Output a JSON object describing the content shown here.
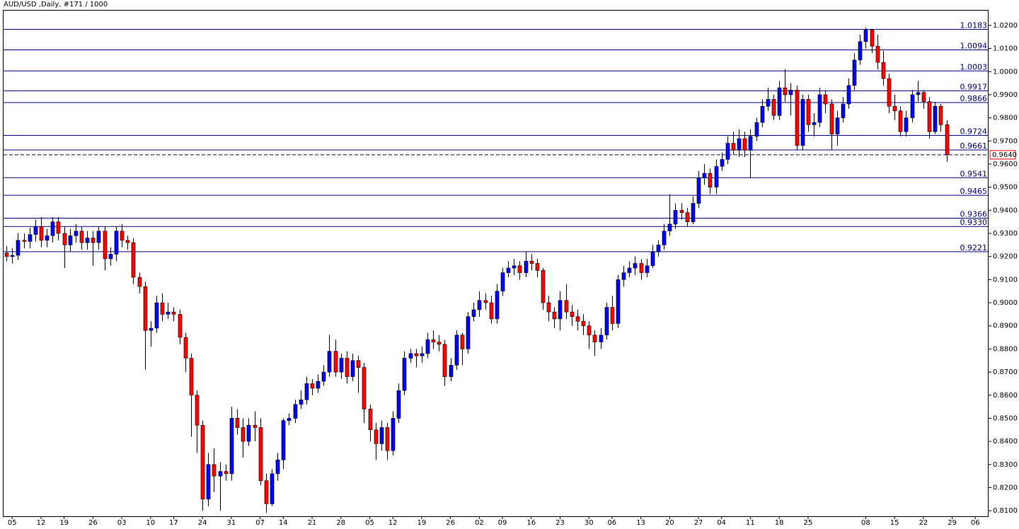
{
  "chart_data": {
    "type": "candlestick",
    "title": "AUD/USD ,Daily, #171 / 1000",
    "up_color": "#0000ff",
    "down_color": "#ff0000",
    "level_color": "#000080",
    "open": [
      0.9215,
      0.92,
      0.9205,
      0.927,
      0.9265,
      0.9295,
      0.933,
      0.927,
      0.929,
      0.935,
      0.93,
      0.925,
      0.929,
      0.931,
      0.926,
      0.928,
      0.926,
      0.931,
      0.919,
      0.921,
      0.931,
      0.927,
      0.926,
      0.911,
      0.907,
      0.888,
      0.889,
      0.9,
      0.895,
      0.896,
      0.895,
      0.885,
      0.876,
      0.86,
      0.847,
      0.815,
      0.83,
      0.825,
      0.827,
      0.826,
      0.85,
      0.846,
      0.84,
      0.847,
      0.846,
      0.823,
      0.813,
      0.826,
      0.832,
      0.849,
      0.85,
      0.856,
      0.858,
      0.865,
      0.863,
      0.866,
      0.87,
      0.879,
      0.87,
      0.876,
      0.868,
      0.875,
      0.872,
      0.854,
      0.845,
      0.839,
      0.846,
      0.836,
      0.85,
      0.862,
      0.876,
      0.878,
      0.877,
      0.878,
      0.884,
      0.883,
      0.882,
      0.868,
      0.873,
      0.886,
      0.88,
      0.894,
      0.897,
      0.901,
      0.9,
      0.893,
      0.905,
      0.913,
      0.915,
      0.916,
      0.913,
      0.918,
      0.917,
      0.914,
      0.9,
      0.896,
      0.893,
      0.901,
      0.896,
      0.894,
      0.892,
      0.89,
      0.886,
      0.883,
      0.886,
      0.898,
      0.891,
      0.91,
      0.913,
      0.915,
      0.917,
      0.913,
      0.916,
      0.922,
      0.925,
      0.931,
      0.934,
      0.94,
      0.939,
      0.935,
      0.943,
      0.954,
      0.956,
      0.95,
      0.959,
      0.962,
      0.969,
      0.966,
      0.971,
      0.966,
      0.972,
      0.978,
      0.985,
      0.988,
      0.981,
      0.993,
      0.99,
      0.992,
      0.968,
      0.988,
      0.977,
      0.978,
      0.99,
      0.986,
      0.973,
      0.98,
      0.986,
      0.994,
      1.005,
      1.013,
      1.018,
      1.011,
      1.004,
      0.997,
      0.985,
      0.983,
      0.974,
      0.98,
      0.99,
      0.991,
      0.987,
      0.974,
      0.985,
      0.977
    ],
    "high": [
      0.9245,
      0.9235,
      0.93,
      0.93,
      0.9325,
      0.936,
      0.937,
      0.932,
      0.937,
      0.937,
      0.933,
      0.932,
      0.934,
      0.933,
      0.931,
      0.931,
      0.933,
      0.933,
      0.924,
      0.933,
      0.934,
      0.929,
      0.928,
      0.913,
      0.909,
      0.892,
      0.903,
      0.904,
      0.9,
      0.898,
      0.897,
      0.887,
      0.878,
      0.862,
      0.849,
      0.835,
      0.837,
      0.831,
      0.83,
      0.855,
      0.854,
      0.85,
      0.85,
      0.853,
      0.85,
      0.826,
      0.828,
      0.835,
      0.85,
      0.852,
      0.858,
      0.862,
      0.868,
      0.867,
      0.869,
      0.873,
      0.886,
      0.884,
      0.878,
      0.879,
      0.878,
      0.877,
      0.874,
      0.856,
      0.848,
      0.849,
      0.848,
      0.853,
      0.865,
      0.879,
      0.88,
      0.88,
      0.881,
      0.887,
      0.888,
      0.886,
      0.884,
      0.876,
      0.888,
      0.887,
      0.896,
      0.9,
      0.905,
      0.904,
      0.903,
      0.908,
      0.915,
      0.918,
      0.919,
      0.918,
      0.922,
      0.921,
      0.919,
      0.915,
      0.903,
      0.898,
      0.905,
      0.908,
      0.899,
      0.897,
      0.895,
      0.892,
      0.888,
      0.889,
      0.9,
      0.903,
      0.912,
      0.916,
      0.918,
      0.92,
      0.919,
      0.919,
      0.925,
      0.927,
      0.934,
      0.947,
      0.943,
      0.943,
      0.941,
      0.946,
      0.957,
      0.96,
      0.958,
      0.962,
      0.965,
      0.972,
      0.974,
      0.975,
      0.974,
      0.975,
      0.98,
      0.988,
      0.993,
      0.99,
      0.996,
      1.001,
      0.995,
      0.994,
      0.99,
      0.99,
      0.982,
      0.993,
      0.992,
      0.988,
      0.983,
      0.989,
      0.997,
      1.008,
      1.016,
      1.019,
      1.0185,
      1.016,
      1.009,
      0.999,
      0.99,
      0.985,
      0.983,
      0.992,
      0.996,
      0.992,
      0.989,
      0.987,
      0.986,
      0.979
    ],
    "low": [
      0.918,
      0.917,
      0.9185,
      0.9235,
      0.9235,
      0.9265,
      0.924,
      0.924,
      0.926,
      0.927,
      0.915,
      0.922,
      0.926,
      0.923,
      0.923,
      0.916,
      0.923,
      0.914,
      0.916,
      0.918,
      0.924,
      0.923,
      0.908,
      0.904,
      0.871,
      0.881,
      0.887,
      0.892,
      0.893,
      0.892,
      0.882,
      0.87,
      0.842,
      0.835,
      0.81,
      0.812,
      0.818,
      0.81,
      0.823,
      0.823,
      0.843,
      0.833,
      0.838,
      0.84,
      0.821,
      0.809,
      0.812,
      0.823,
      0.828,
      0.847,
      0.848,
      0.854,
      0.856,
      0.86,
      0.861,
      0.864,
      0.868,
      0.868,
      0.867,
      0.865,
      0.866,
      0.861,
      0.848,
      0.84,
      0.832,
      0.836,
      0.832,
      0.834,
      0.848,
      0.86,
      0.874,
      0.872,
      0.874,
      0.876,
      0.88,
      0.879,
      0.864,
      0.866,
      0.871,
      0.873,
      0.878,
      0.892,
      0.894,
      0.897,
      0.891,
      0.891,
      0.903,
      0.911,
      0.912,
      0.91,
      0.911,
      0.914,
      0.911,
      0.897,
      0.892,
      0.889,
      0.888,
      0.893,
      0.89,
      0.888,
      0.886,
      0.88,
      0.877,
      0.88,
      0.884,
      0.888,
      0.889,
      0.907,
      0.911,
      0.912,
      0.91,
      0.911,
      0.915,
      0.92,
      0.923,
      0.929,
      0.932,
      0.936,
      0.933,
      0.934,
      0.941,
      0.951,
      0.947,
      0.947,
      0.957,
      0.96,
      0.964,
      0.963,
      0.963,
      0.954,
      0.97,
      0.976,
      0.983,
      0.979,
      0.979,
      0.987,
      0.981,
      0.966,
      0.966,
      0.974,
      0.972,
      0.976,
      0.982,
      0.966,
      0.968,
      0.978,
      0.984,
      0.992,
      1.003,
      1.01,
      1.008,
      1.001,
      0.994,
      0.982,
      0.979,
      0.972,
      0.972,
      0.978,
      0.987,
      0.984,
      0.971,
      0.973,
      0.974,
      0.961
    ],
    "close": [
      0.92,
      0.9205,
      0.927,
      0.9265,
      0.9295,
      0.933,
      0.927,
      0.929,
      0.935,
      0.93,
      0.925,
      0.929,
      0.931,
      0.926,
      0.928,
      0.926,
      0.931,
      0.919,
      0.921,
      0.931,
      0.927,
      0.926,
      0.911,
      0.907,
      0.888,
      0.889,
      0.9,
      0.895,
      0.896,
      0.895,
      0.885,
      0.876,
      0.86,
      0.847,
      0.815,
      0.83,
      0.825,
      0.827,
      0.826,
      0.85,
      0.846,
      0.84,
      0.847,
      0.846,
      0.823,
      0.813,
      0.826,
      0.832,
      0.849,
      0.85,
      0.856,
      0.858,
      0.865,
      0.863,
      0.866,
      0.87,
      0.879,
      0.87,
      0.876,
      0.868,
      0.875,
      0.872,
      0.854,
      0.845,
      0.839,
      0.846,
      0.836,
      0.85,
      0.862,
      0.876,
      0.878,
      0.877,
      0.878,
      0.884,
      0.883,
      0.882,
      0.868,
      0.873,
      0.886,
      0.88,
      0.894,
      0.897,
      0.901,
      0.9,
      0.893,
      0.905,
      0.913,
      0.915,
      0.916,
      0.913,
      0.918,
      0.917,
      0.914,
      0.9,
      0.896,
      0.893,
      0.901,
      0.896,
      0.894,
      0.892,
      0.89,
      0.886,
      0.883,
      0.886,
      0.898,
      0.891,
      0.91,
      0.913,
      0.915,
      0.917,
      0.913,
      0.916,
      0.922,
      0.925,
      0.931,
      0.934,
      0.94,
      0.939,
      0.935,
      0.943,
      0.954,
      0.956,
      0.95,
      0.959,
      0.962,
      0.969,
      0.966,
      0.971,
      0.966,
      0.972,
      0.978,
      0.985,
      0.988,
      0.981,
      0.993,
      0.99,
      0.992,
      0.968,
      0.988,
      0.977,
      0.978,
      0.99,
      0.986,
      0.973,
      0.98,
      0.986,
      0.994,
      1.005,
      1.013,
      1.018,
      1.011,
      1.004,
      0.997,
      0.985,
      0.983,
      0.974,
      0.98,
      0.99,
      0.991,
      0.987,
      0.974,
      0.985,
      0.977,
      0.964
    ],
    "xlim": [
      -0.5,
      170.3
    ],
    "xticks": [
      {
        "value": 1,
        "label": "05"
      },
      {
        "value": 6,
        "label": "12"
      },
      {
        "value": 10,
        "label": "19"
      },
      {
        "value": 15,
        "label": "26"
      },
      {
        "value": 20,
        "label": "03"
      },
      {
        "value": 25,
        "label": "10"
      },
      {
        "value": 29,
        "label": "17"
      },
      {
        "value": 34,
        "label": "24"
      },
      {
        "value": 39,
        "label": "31"
      },
      {
        "value": 44,
        "label": "07"
      },
      {
        "value": 48,
        "label": "14"
      },
      {
        "value": 53,
        "label": "21"
      },
      {
        "value": 58,
        "label": "28"
      },
      {
        "value": 63,
        "label": "05"
      },
      {
        "value": 67,
        "label": "12"
      },
      {
        "value": 72,
        "label": "19"
      },
      {
        "value": 77,
        "label": "26"
      },
      {
        "value": 82,
        "label": "02"
      },
      {
        "value": 86,
        "label": "09"
      },
      {
        "value": 91,
        "label": "16"
      },
      {
        "value": 96,
        "label": "23"
      },
      {
        "value": 101,
        "label": "30"
      },
      {
        "value": 105,
        "label": "06"
      },
      {
        "value": 110,
        "label": "13"
      },
      {
        "value": 115,
        "label": "20"
      },
      {
        "value": 120,
        "label": "27"
      },
      {
        "value": 124,
        "label": "04"
      },
      {
        "value": 129,
        "label": "11"
      },
      {
        "value": 134,
        "label": "18"
      },
      {
        "value": 139,
        "label": "25"
      },
      {
        "value": 149,
        "label": "08"
      },
      {
        "value": 154,
        "label": "15"
      },
      {
        "value": 159,
        "label": "22"
      },
      {
        "value": 164,
        "label": "29"
      },
      {
        "value": 168,
        "label": "06"
      }
    ],
    "ylim": [
      0.8076,
      1.0267
    ],
    "yticks": [
      {
        "value": 0.81,
        "label": "0.8100"
      },
      {
        "value": 0.82,
        "label": "0.8200"
      },
      {
        "value": 0.83,
        "label": "0.8300"
      },
      {
        "value": 0.84,
        "label": "0.8400"
      },
      {
        "value": 0.85,
        "label": "0.8500"
      },
      {
        "value": 0.86,
        "label": "0.8600"
      },
      {
        "value": 0.87,
        "label": "0.8700"
      },
      {
        "value": 0.88,
        "label": "0.8800"
      },
      {
        "value": 0.89,
        "label": "0.8900"
      },
      {
        "value": 0.9,
        "label": "0.9000"
      },
      {
        "value": 0.91,
        "label": "0.9100"
      },
      {
        "value": 0.92,
        "label": "0.9200"
      },
      {
        "value": 0.93,
        "label": "0.9300"
      },
      {
        "value": 0.94,
        "label": "0.9400"
      },
      {
        "value": 0.95,
        "label": "0.9500"
      },
      {
        "value": 0.96,
        "label": "0.9600"
      },
      {
        "value": 0.97,
        "label": "0.9700"
      },
      {
        "value": 0.98,
        "label": "0.9800"
      },
      {
        "value": 0.99,
        "label": "0.9900"
      },
      {
        "value": 1.0,
        "label": "1.0000"
      },
      {
        "value": 1.01,
        "label": "1.0100"
      },
      {
        "value": 1.02,
        "label": "1.0200"
      }
    ],
    "levels": [
      1.0183,
      1.0094,
      1.0003,
      0.9917,
      0.9866,
      0.9724,
      0.9661,
      0.9541,
      0.9465,
      0.9366,
      {
        "value": 0.933,
        "label": "0.9330"
      },
      0.9221
    ],
    "current_price": {
      "value": 0.964,
      "label": "0.9640"
    }
  }
}
